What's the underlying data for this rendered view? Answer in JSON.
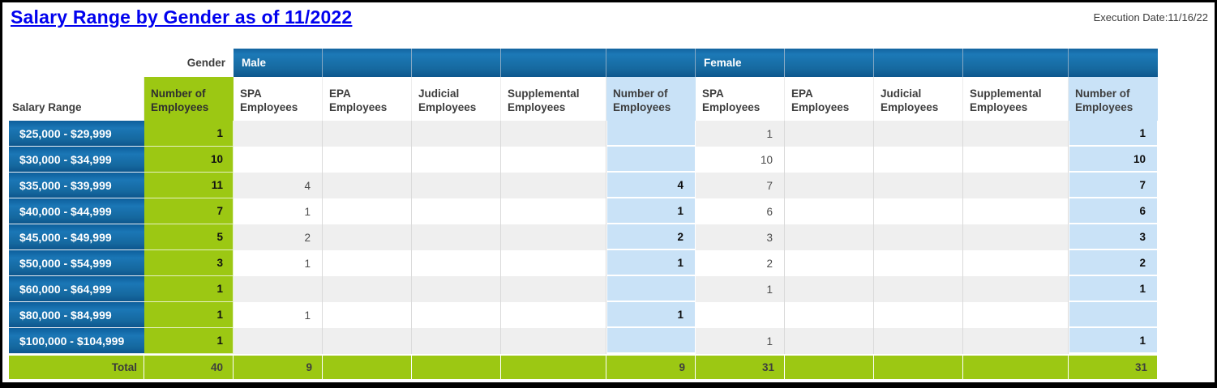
{
  "page": {
    "title": "Salary Range by Gender as of 11/2022",
    "execution_date_label": "Execution Date:",
    "execution_date_value": "11/16/22"
  },
  "colors": {
    "header_blue": "#15689f",
    "lime_green": "#9cc813",
    "light_blue": "#c9e2f7",
    "row_alt_gray": "#efefef",
    "title_blue": "#0101ee"
  },
  "table": {
    "gender_label": "Gender",
    "salary_range_header": "Salary Range",
    "overall_total_header": "Number of Employees",
    "groups": [
      {
        "label": "Male"
      },
      {
        "label": "Female"
      }
    ],
    "sub_headers": [
      "SPA Employees",
      "EPA Employees",
      "Judicial Employees",
      "Supplemental Employees",
      "Number of Employees"
    ],
    "rows": [
      {
        "range": "$25,000 - $29,999",
        "total": "1",
        "m": [
          "",
          "",
          "",
          "",
          ""
        ],
        "f": [
          "1",
          "",
          "",
          "",
          "1"
        ]
      },
      {
        "range": "$30,000 - $34,999",
        "total": "10",
        "m": [
          "",
          "",
          "",
          "",
          ""
        ],
        "f": [
          "10",
          "",
          "",
          "",
          "10"
        ]
      },
      {
        "range": "$35,000 - $39,999",
        "total": "11",
        "m": [
          "4",
          "",
          "",
          "",
          "4"
        ],
        "f": [
          "7",
          "",
          "",
          "",
          "7"
        ]
      },
      {
        "range": "$40,000 - $44,999",
        "total": "7",
        "m": [
          "1",
          "",
          "",
          "",
          "1"
        ],
        "f": [
          "6",
          "",
          "",
          "",
          "6"
        ]
      },
      {
        "range": "$45,000 - $49,999",
        "total": "5",
        "m": [
          "2",
          "",
          "",
          "",
          "2"
        ],
        "f": [
          "3",
          "",
          "",
          "",
          "3"
        ]
      },
      {
        "range": "$50,000 - $54,999",
        "total": "3",
        "m": [
          "1",
          "",
          "",
          "",
          "1"
        ],
        "f": [
          "2",
          "",
          "",
          "",
          "2"
        ]
      },
      {
        "range": "$60,000 - $64,999",
        "total": "1",
        "m": [
          "",
          "",
          "",
          "",
          ""
        ],
        "f": [
          "1",
          "",
          "",
          "",
          "1"
        ]
      },
      {
        "range": "$80,000 - $84,999",
        "total": "1",
        "m": [
          "1",
          "",
          "",
          "",
          "1"
        ],
        "f": [
          "",
          "",
          "",
          "",
          ""
        ]
      },
      {
        "range": "$100,000 - $104,999",
        "total": "1",
        "m": [
          "",
          "",
          "",
          "",
          ""
        ],
        "f": [
          "1",
          "",
          "",
          "",
          "1"
        ]
      }
    ],
    "total_row": {
      "label": "Total",
      "total": "40",
      "m": [
        "9",
        "",
        "",
        "",
        "9"
      ],
      "f": [
        "31",
        "",
        "",
        "",
        "31"
      ]
    }
  }
}
